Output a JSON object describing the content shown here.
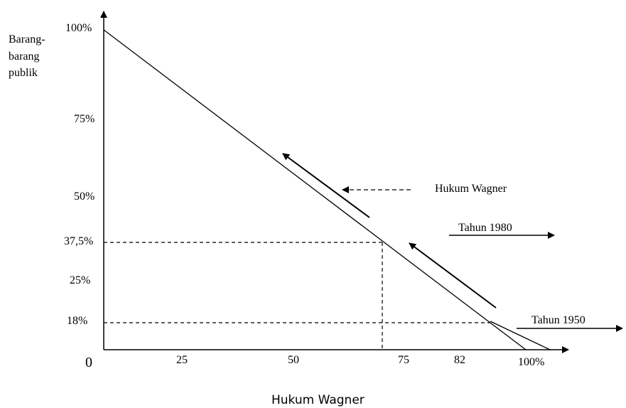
{
  "diagram": {
    "y_axis_label_lines": [
      "Barang-",
      "barang",
      "publik"
    ],
    "origin_label": "0",
    "y_ticks": [
      "100%",
      "75%",
      "50%",
      "37,5%",
      "25%",
      "18%"
    ],
    "x_ticks": [
      "25",
      "50",
      "75",
      "82",
      "100%"
    ],
    "annotation_wagner": "Hukum Wagner",
    "annotation_1980": "Tahun 1980",
    "annotation_1950": "Tahun 1950",
    "caption": "Hukum Wagner",
    "reference_points": [
      {
        "x": 75,
        "y": 37.5
      },
      {
        "x": 82,
        "y": 18
      }
    ]
  }
}
